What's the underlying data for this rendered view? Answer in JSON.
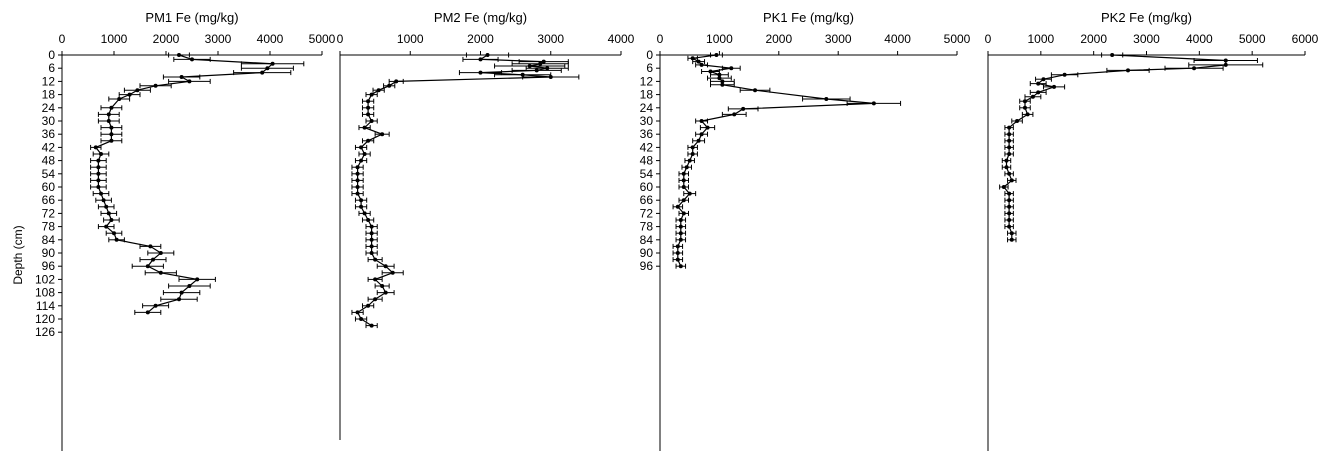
{
  "figure": {
    "ylabel": "Depth (cm)"
  },
  "chart_data": [
    {
      "type": "line",
      "title": "PM1   Fe (mg/kg)",
      "xlim": [
        0,
        5000
      ],
      "xticks": [
        0,
        1000,
        2000,
        3000,
        4000,
        5000
      ],
      "ylim": [
        0,
        128
      ],
      "yticks": [
        0,
        6,
        12,
        18,
        24,
        30,
        36,
        42,
        48,
        54,
        60,
        66,
        72,
        78,
        84,
        90,
        96,
        102,
        108,
        114,
        120,
        126
      ],
      "ylabel": "Depth (cm)",
      "series": [
        {
          "depth": [
            0,
            2,
            4,
            6,
            8,
            10,
            12,
            14,
            16,
            18,
            20,
            24,
            27,
            30,
            33,
            36,
            39,
            42,
            45,
            48,
            51,
            54,
            57,
            60,
            63,
            66,
            69,
            72,
            75,
            78,
            81,
            84,
            87,
            90,
            93,
            96,
            99,
            102,
            105,
            108,
            111,
            114,
            117
          ],
          "fe": [
            2250,
            2500,
            4050,
            3950,
            3850,
            2300,
            2450,
            1800,
            1450,
            1300,
            1100,
            950,
            900,
            900,
            950,
            950,
            950,
            650,
            750,
            700,
            700,
            700,
            700,
            700,
            750,
            800,
            850,
            900,
            950,
            850,
            1000,
            1050,
            1700,
            1900,
            1750,
            1650,
            1900,
            2600,
            2450,
            2300,
            2250,
            1800,
            1650
          ],
          "err": [
            200,
            350,
            600,
            500,
            550,
            350,
            400,
            300,
            250,
            200,
            200,
            200,
            200,
            200,
            200,
            200,
            200,
            100,
            150,
            150,
            150,
            150,
            150,
            150,
            150,
            150,
            150,
            150,
            150,
            150,
            150,
            150,
            200,
            250,
            250,
            300,
            300,
            350,
            400,
            350,
            350,
            250,
            250
          ]
        }
      ]
    },
    {
      "type": "line",
      "title": "PM2   Fe (mg/kg)",
      "xlim": [
        0,
        4000
      ],
      "xticks": [
        0,
        1000,
        2000,
        3000,
        4000
      ],
      "ylim": [
        0,
        128
      ],
      "yticks": [],
      "series": [
        {
          "depth": [
            0,
            2,
            3,
            4,
            5,
            6,
            7,
            8,
            9,
            10,
            12,
            14,
            16,
            18,
            21,
            24,
            27,
            30,
            33,
            36,
            39,
            42,
            45,
            48,
            51,
            54,
            57,
            60,
            63,
            66,
            69,
            72,
            75,
            78,
            81,
            84,
            87,
            90,
            93,
            96,
            99,
            102,
            105,
            108,
            111,
            114,
            117,
            120,
            123
          ],
          "fe": [
            2100,
            2000,
            2900,
            2850,
            2700,
            2950,
            2800,
            2000,
            2600,
            3000,
            800,
            700,
            550,
            450,
            400,
            400,
            400,
            450,
            350,
            600,
            400,
            300,
            350,
            300,
            250,
            250,
            250,
            250,
            250,
            300,
            300,
            350,
            400,
            450,
            450,
            450,
            450,
            450,
            500,
            650,
            750,
            500,
            600,
            650,
            500,
            400,
            250,
            300,
            450
          ],
          "err": [
            300,
            250,
            350,
            400,
            500,
            300,
            350,
            300,
            400,
            400,
            100,
            80,
            80,
            80,
            80,
            80,
            80,
            80,
            80,
            100,
            80,
            80,
            80,
            80,
            80,
            80,
            80,
            80,
            80,
            80,
            80,
            80,
            80,
            80,
            80,
            80,
            80,
            80,
            100,
            120,
            150,
            100,
            100,
            120,
            100,
            80,
            80,
            80,
            80
          ]
        }
      ]
    },
    {
      "type": "line",
      "title": "PK1   Fe (mg/kg)",
      "xlim": [
        0,
        5000
      ],
      "xticks": [
        0,
        1000,
        2000,
        3000,
        4000,
        5000
      ],
      "ylim": [
        0,
        98
      ],
      "yticks": [
        0,
        6,
        12,
        18,
        24,
        30,
        36,
        42,
        48,
        54,
        60,
        66,
        72,
        78,
        84,
        90,
        96
      ],
      "series": [
        {
          "depth": [
            0,
            1.5,
            3,
            4.5,
            6,
            7.5,
            9,
            10.5,
            12,
            13.5,
            16,
            20,
            22,
            24.5,
            27,
            30,
            33,
            36,
            39,
            42,
            45,
            48,
            51,
            54,
            57,
            60,
            63,
            66,
            69,
            72,
            75,
            78,
            81,
            84,
            87,
            90,
            93,
            96
          ],
          "fe": [
            950,
            550,
            650,
            700,
            1200,
            850,
            1000,
            1000,
            1050,
            1050,
            1600,
            2800,
            3600,
            1400,
            1250,
            700,
            800,
            700,
            650,
            550,
            550,
            500,
            450,
            400,
            400,
            400,
            500,
            400,
            300,
            400,
            350,
            350,
            350,
            350,
            300,
            300,
            300,
            350
          ],
          "err": [
            100,
            80,
            100,
            100,
            150,
            150,
            150,
            200,
            200,
            200,
            250,
            400,
            450,
            250,
            200,
            100,
            120,
            100,
            100,
            80,
            80,
            80,
            80,
            80,
            80,
            80,
            100,
            80,
            80,
            80,
            80,
            80,
            80,
            80,
            80,
            80,
            80,
            80
          ]
        }
      ]
    },
    {
      "type": "line",
      "title": "PK2   Fe (mg/kg)",
      "xlim": [
        0,
        6000
      ],
      "xticks": [
        0,
        1000,
        2000,
        3000,
        4000,
        5000,
        6000
      ],
      "ylim": [
        0,
        98
      ],
      "yticks": [],
      "series": [
        {
          "depth": [
            0,
            2.5,
            4.5,
            6,
            7,
            9,
            11,
            13,
            14.5,
            17,
            19,
            21,
            24,
            27,
            30,
            33,
            36,
            39,
            42,
            45,
            48,
            51,
            54,
            57,
            60,
            63,
            66,
            69,
            72,
            75,
            78,
            81,
            84
          ],
          "fe": [
            2350,
            4500,
            4500,
            3900,
            2650,
            1450,
            1050,
            950,
            1250,
            950,
            850,
            700,
            700,
            750,
            550,
            400,
            400,
            400,
            400,
            400,
            350,
            350,
            400,
            450,
            300,
            400,
            400,
            400,
            400,
            400,
            400,
            450,
            450
          ],
          "err": [
            200,
            600,
            700,
            550,
            400,
            250,
            150,
            150,
            200,
            150,
            150,
            100,
            100,
            100,
            100,
            80,
            80,
            80,
            80,
            80,
            80,
            80,
            80,
            80,
            80,
            80,
            80,
            80,
            80,
            80,
            80,
            80,
            80
          ]
        }
      ]
    }
  ]
}
